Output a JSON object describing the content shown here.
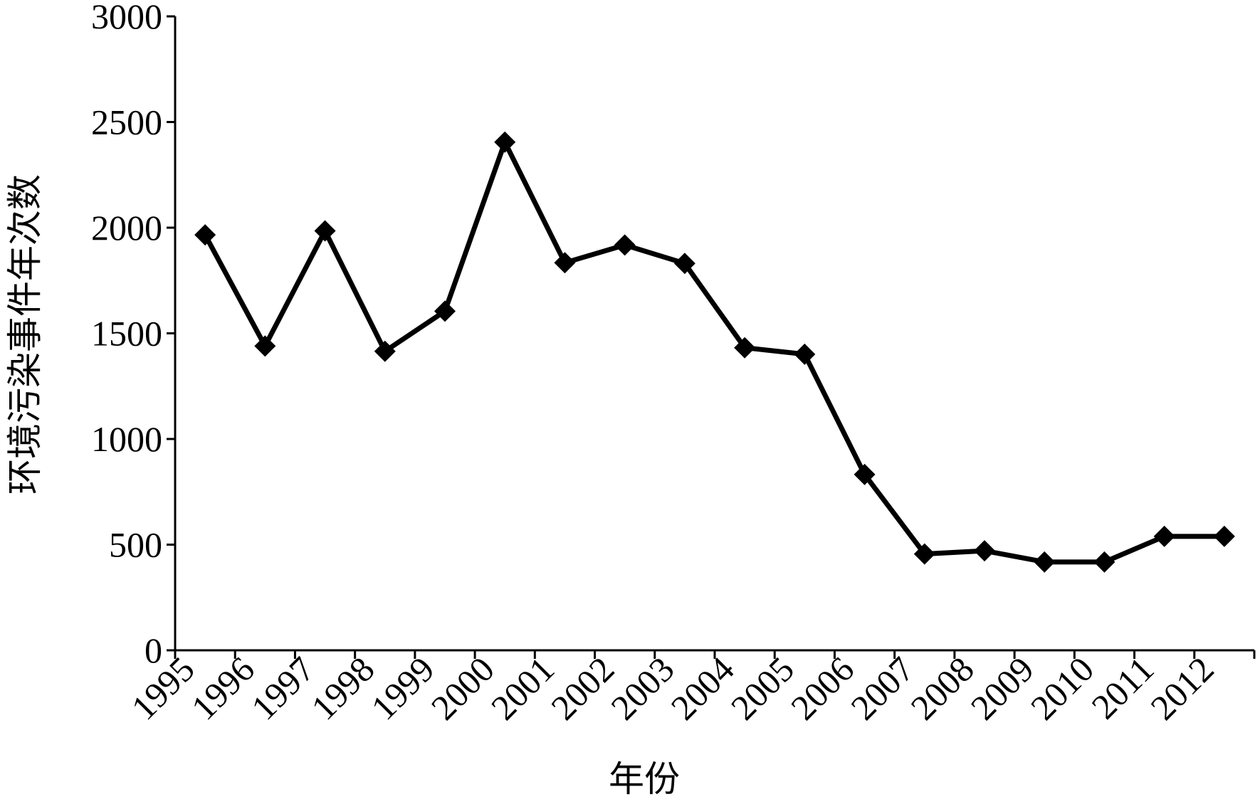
{
  "chart_data": {
    "type": "line",
    "x_label": "年份",
    "y_label": "环境污染事件年次数",
    "categories": [
      "1995",
      "1996",
      "1997",
      "1998",
      "1999",
      "2000",
      "2001",
      "2002",
      "2003",
      "2004",
      "2005",
      "2006",
      "2007",
      "2008",
      "2009",
      "2010",
      "2011",
      "2012"
    ],
    "values": [
      1966,
      1440,
      1985,
      1415,
      1605,
      2405,
      1834,
      1918,
      1831,
      1432,
      1401,
      832,
      456,
      471,
      418,
      418,
      539,
      539
    ],
    "color": "#000000",
    "marker": "diamond",
    "ylim": [
      0,
      3000
    ],
    "yticks": [
      0,
      500,
      1000,
      1500,
      2000,
      2500,
      3000
    ],
    "grid": false
  }
}
